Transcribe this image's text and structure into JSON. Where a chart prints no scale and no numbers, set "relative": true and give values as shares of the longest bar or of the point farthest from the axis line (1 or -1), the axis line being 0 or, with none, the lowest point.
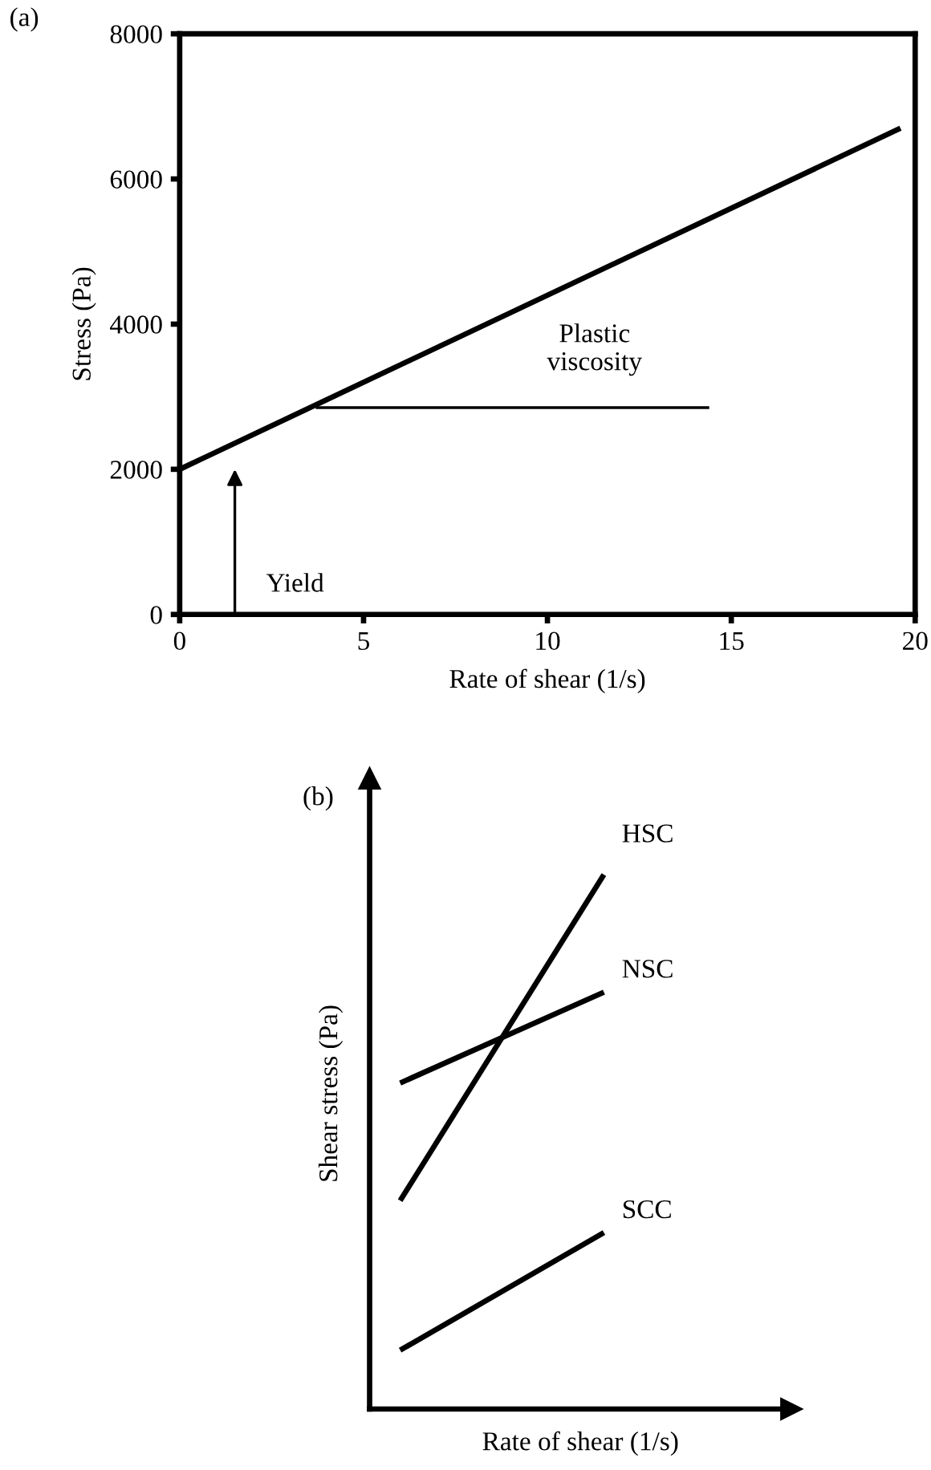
{
  "chart_data": [
    {
      "type": "line",
      "title": "(a)",
      "xlabel": "Rate of shear (1/s)",
      "ylabel": "Stress (Pa)",
      "x": [
        0,
        19.6
      ],
      "series": [
        {
          "color": "#000000",
          "values": [
            2000,
            6700
          ]
        },
        {
          "color": "#000000",
          "x": [
            3.7,
            14.4
          ],
          "values": [
            2850,
            2850
          ]
        }
      ],
      "xlim": [
        0,
        20
      ],
      "ylim": [
        0,
        8000
      ],
      "xticks": [
        0,
        5,
        10,
        15,
        20
      ],
      "yticks": [
        0,
        2000,
        4000,
        6000,
        8000
      ],
      "grid": false,
      "legend": false,
      "marker": "none",
      "line_style": "solid",
      "annotations": [
        "Yield",
        "Plastic\nviscosity"
      ]
    },
    {
      "type": "line",
      "title": "(b)",
      "xlabel": "Rate of shear (1/s)",
      "ylabel": "Shear stress (Pa)",
      "categories": [
        null,
        null
      ],
      "relative": true,
      "series": [
        {
          "name": "HSC",
          "color": "#000000",
          "values": [
            0.39,
            1
          ]
        },
        {
          "name": "NSC",
          "color": "#000000",
          "values": [
            0.61,
            0.78
          ]
        },
        {
          "name": "SCC",
          "color": "#000000",
          "values": [
            0.11,
            0.33
          ]
        }
      ],
      "tick_labels": false,
      "grid": false,
      "legend": false,
      "marker": "none",
      "line_style": "solid"
    }
  ]
}
